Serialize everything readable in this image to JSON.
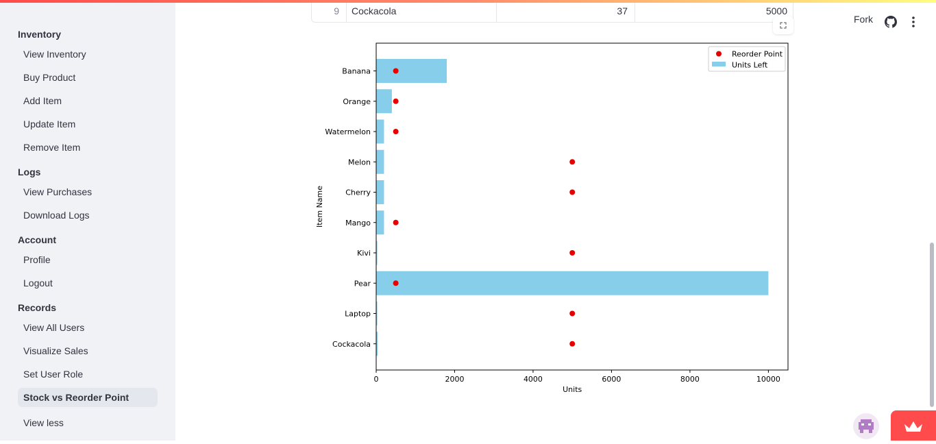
{
  "sidebar": {
    "sections": [
      {
        "title": "Inventory",
        "items": [
          "View Inventory",
          "Buy Product",
          "Add Item",
          "Update Item",
          "Remove Item"
        ]
      },
      {
        "title": "Logs",
        "items": [
          "View Purchases",
          "Download Logs"
        ]
      },
      {
        "title": "Account",
        "items": [
          "Profile",
          "Logout"
        ]
      },
      {
        "title": "Records",
        "items": [
          "View All Users",
          "Visualize Sales",
          "Set User Role",
          "Stock vs Reorder Point"
        ]
      }
    ],
    "active_item": "Stock vs Reorder Point",
    "view_less_label": "View less"
  },
  "header": {
    "fork_label": "Fork",
    "icons": [
      "github-icon",
      "more-vertical-icon"
    ]
  },
  "table_row": {
    "index": "9",
    "name": "Cockacola",
    "qty": "37",
    "reorder": "5000"
  },
  "expand_icon": "fullscreen-icon",
  "chart_data": {
    "type": "bar",
    "orientation": "horizontal",
    "categories": [
      "Banana",
      "Orange",
      "Watermelon",
      "Melon",
      "Cherry",
      "Mango",
      "Kivi",
      "Pear",
      "Laptop",
      "Cockacola"
    ],
    "series": [
      {
        "name": "Units Left",
        "type": "bar",
        "color": "#87ceeb",
        "values": [
          1800,
          400,
          200,
          200,
          200,
          200,
          10,
          10000,
          10,
          37
        ]
      },
      {
        "name": "Reorder Point",
        "type": "scatter",
        "color": "#e60000",
        "values": [
          500,
          500,
          500,
          5000,
          5000,
          500,
          5000,
          500,
          5000,
          5000
        ]
      }
    ],
    "xlabel": "Units",
    "ylabel": "Item Name",
    "xlim": [
      0,
      10500
    ],
    "xticks": [
      0,
      2000,
      4000,
      6000,
      8000,
      10000
    ],
    "legend": {
      "position": "top-right"
    },
    "grid": false
  }
}
